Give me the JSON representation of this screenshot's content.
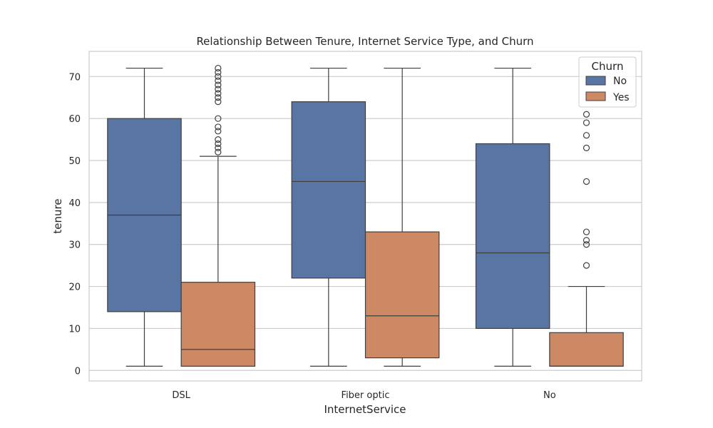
{
  "chart_data": {
    "type": "box",
    "title": "Relationship Between Tenure, Internet Service Type, and Churn",
    "xlabel": "InternetService",
    "ylabel": "tenure",
    "categories": [
      "DSL",
      "Fiber optic",
      "No"
    ],
    "ylim": [
      -2.5,
      76
    ],
    "yticks": [
      0,
      10,
      20,
      30,
      40,
      50,
      60,
      70
    ],
    "grid": "horizontal",
    "legend": {
      "title": "Churn",
      "position": "top-right"
    },
    "series": [
      {
        "name": "No",
        "color": "#5875a4",
        "boxes": [
          {
            "whisker_low": 1,
            "q1": 14,
            "median": 37,
            "q3": 60,
            "whisker_high": 72,
            "outliers": []
          },
          {
            "whisker_low": 1,
            "q1": 22,
            "median": 45,
            "q3": 64,
            "whisker_high": 72,
            "outliers": []
          },
          {
            "whisker_low": 1,
            "q1": 10,
            "median": 28,
            "q3": 54,
            "whisker_high": 72,
            "outliers": []
          }
        ]
      },
      {
        "name": "Yes",
        "color": "#cc8963",
        "boxes": [
          {
            "whisker_low": 1,
            "q1": 1,
            "median": 5,
            "q3": 21,
            "whisker_high": 51,
            "outliers": [
              52,
              53,
              54,
              55,
              57,
              58,
              60,
              64,
              65,
              66,
              67,
              68,
              69,
              70,
              71,
              72
            ]
          },
          {
            "whisker_low": 1,
            "q1": 3,
            "median": 13,
            "q3": 33,
            "whisker_high": 72,
            "outliers": []
          },
          {
            "whisker_low": 1,
            "q1": 1,
            "median": 1,
            "q3": 9,
            "whisker_high": 20,
            "outliers": [
              25,
              30,
              31,
              33,
              45,
              53,
              56,
              59,
              61
            ]
          }
        ]
      }
    ]
  }
}
